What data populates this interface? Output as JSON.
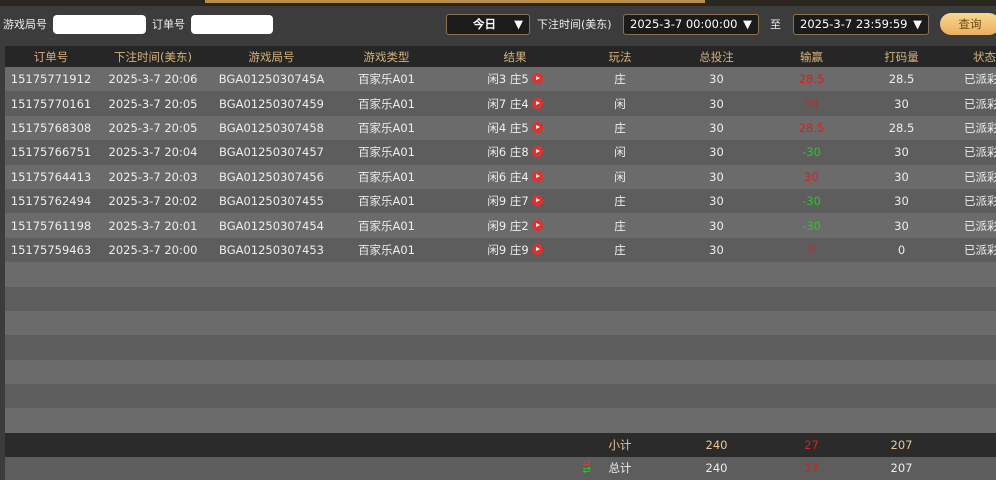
{
  "filters": {
    "round_label": "游戏局号",
    "round_value": "",
    "order_label": "订单号",
    "order_value": "",
    "period": "今日",
    "time_label": "下注时间(美东)",
    "start": "2025-3-7 00:00:00",
    "to_label": "至",
    "end": "2025-3-7 23:59:59",
    "query": "查询"
  },
  "columns": [
    "订单号",
    "下注时间(美东)",
    "游戏局号",
    "游戏类型",
    "结果",
    "玩法",
    "总投注",
    "输赢",
    "打码量",
    "状态"
  ],
  "rows": [
    {
      "order": "15175771912",
      "time": "2025-3-7 20:06",
      "round": "BGA0125030745A",
      "type": "百家乐A01",
      "result": "闲3 庄5",
      "play": "庄",
      "bet": "30",
      "win": "28.5",
      "win_color": "red",
      "valid": "28.5",
      "status": "已派彩"
    },
    {
      "order": "15175770161",
      "time": "2025-3-7 20:05",
      "round": "BGA01250307459",
      "type": "百家乐A01",
      "result": "闲7 庄4",
      "play": "闲",
      "bet": "30",
      "win": "30",
      "win_color": "red",
      "valid": "30",
      "status": "已派彩"
    },
    {
      "order": "15175768308",
      "time": "2025-3-7 20:05",
      "round": "BGA01250307458",
      "type": "百家乐A01",
      "result": "闲4 庄5",
      "play": "庄",
      "bet": "30",
      "win": "28.5",
      "win_color": "red",
      "valid": "28.5",
      "status": "已派彩"
    },
    {
      "order": "15175766751",
      "time": "2025-3-7 20:04",
      "round": "BGA01250307457",
      "type": "百家乐A01",
      "result": "闲6 庄8",
      "play": "闲",
      "bet": "30",
      "win": "-30",
      "win_color": "green",
      "valid": "30",
      "status": "已派彩"
    },
    {
      "order": "15175764413",
      "time": "2025-3-7 20:03",
      "round": "BGA01250307456",
      "type": "百家乐A01",
      "result": "闲6 庄4",
      "play": "闲",
      "bet": "30",
      "win": "30",
      "win_color": "red",
      "valid": "30",
      "status": "已派彩"
    },
    {
      "order": "15175762494",
      "time": "2025-3-7 20:02",
      "round": "BGA01250307455",
      "type": "百家乐A01",
      "result": "闲9 庄7",
      "play": "庄",
      "bet": "30",
      "win": "-30",
      "win_color": "green",
      "valid": "30",
      "status": "已派彩"
    },
    {
      "order": "15175761198",
      "time": "2025-3-7 20:01",
      "round": "BGA01250307454",
      "type": "百家乐A01",
      "result": "闲9 庄2",
      "play": "庄",
      "bet": "30",
      "win": "-30",
      "win_color": "green",
      "valid": "30",
      "status": "已派彩"
    },
    {
      "order": "15175759463",
      "time": "2025-3-7 20:00",
      "round": "BGA01250307453",
      "type": "百家乐A01",
      "result": "闲9 庄9",
      "play": "庄",
      "bet": "30",
      "win": "0",
      "win_color": "red",
      "valid": "0",
      "status": "已派彩"
    }
  ],
  "subtotal": {
    "label": "小计",
    "bet": "240",
    "win": "27",
    "valid": "207"
  },
  "total": {
    "label": "总计",
    "bet": "240",
    "win": "27",
    "valid": "207",
    "icon": "refresh-icon"
  },
  "colors": {
    "red": "#d42020",
    "green": "#22cc22",
    "header_text": "#d4b27c"
  }
}
